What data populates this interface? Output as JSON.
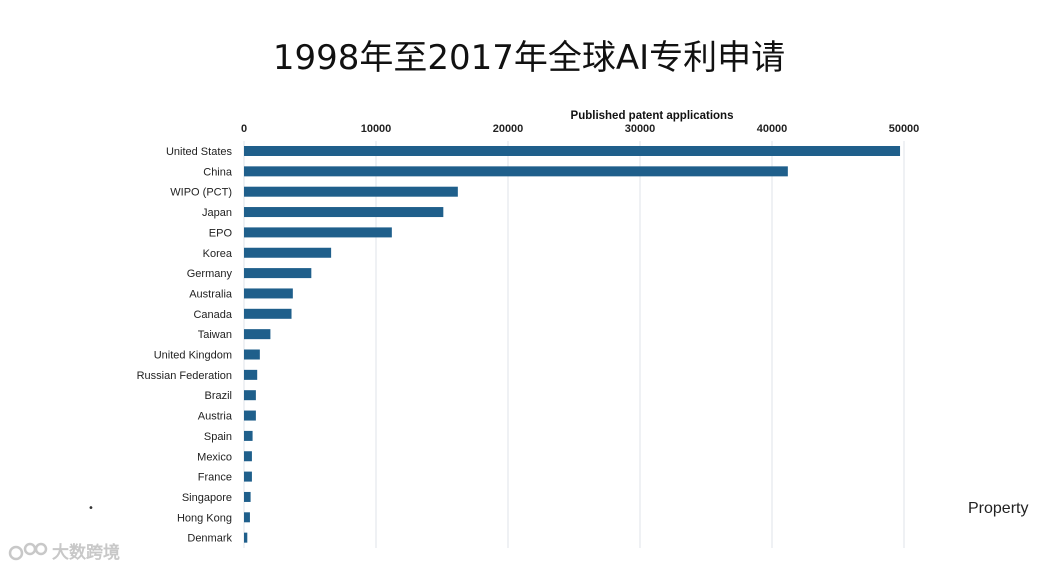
{
  "title": "1998年至2017年全球AI专利申请",
  "side_text": "Property",
  "bullet": "•",
  "watermark": {
    "text": "大数跨境",
    "icon": "brand-logo-icon"
  },
  "colors": {
    "bar": "#1f5f8b",
    "grid": "#dfe3e8"
  },
  "chart_data": {
    "type": "bar",
    "orientation": "horizontal",
    "title": "1998年至2017年全球AI专利申请",
    "xlabel": "Published patent applications",
    "xlim": [
      0,
      50000
    ],
    "x_ticks": [
      "0",
      "10000",
      "20000",
      "30000",
      "40000",
      "50000"
    ],
    "x_tick_values": [
      0,
      10000,
      20000,
      30000,
      40000,
      50000
    ],
    "x_axis_position": "top",
    "grid": true,
    "categories": [
      "United States",
      "China",
      "WIPO (PCT)",
      "Japan",
      "EPO",
      "Korea",
      "Germany",
      "Australia",
      "Canada",
      "Taiwan",
      "United Kingdom",
      "Russian Federation",
      "Brazil",
      "Austria",
      "Spain",
      "Mexico",
      "France",
      "Singapore",
      "Hong Kong",
      "Denmark"
    ],
    "values": [
      49700,
      41200,
      16200,
      15100,
      11200,
      6600,
      5100,
      3700,
      3600,
      2000,
      1200,
      1000,
      900,
      900,
      650,
      600,
      600,
      500,
      450,
      250
    ]
  }
}
